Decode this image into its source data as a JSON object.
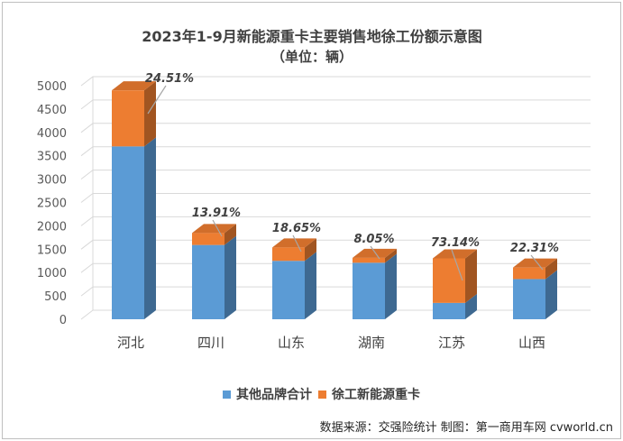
{
  "chart_data": {
    "type": "bar",
    "stacked": true,
    "title": "2023年1-9月新能源重卡主要销售地徐工份额示意图",
    "subtitle": "（单位：辆）",
    "categories": [
      "河北",
      "四川",
      "山东",
      "湖南",
      "江苏",
      "山西"
    ],
    "series": [
      {
        "name": "其他品牌合计",
        "color": "#5b9bd5",
        "values": [
          3700,
          1590,
          1250,
          1210,
          350,
          860
        ]
      },
      {
        "name": "徐工新能源重卡",
        "color": "#ed7d31",
        "values": [
          1200,
          257,
          287,
          106,
          953,
          247
        ]
      }
    ],
    "share_labels": [
      "24.51%",
      "13.91%",
      "18.65%",
      "8.05%",
      "73.14%",
      "22.31%"
    ],
    "yticks": [
      "0",
      "500",
      "1000",
      "1500",
      "2000",
      "2500",
      "3000",
      "3500",
      "4000",
      "4500",
      "5000"
    ],
    "ylim": [
      0,
      5000
    ],
    "grid": true,
    "legend_position": "bottom",
    "source": "数据来源：交强险统计  制图：第一商用车网 cvworld.cn"
  }
}
